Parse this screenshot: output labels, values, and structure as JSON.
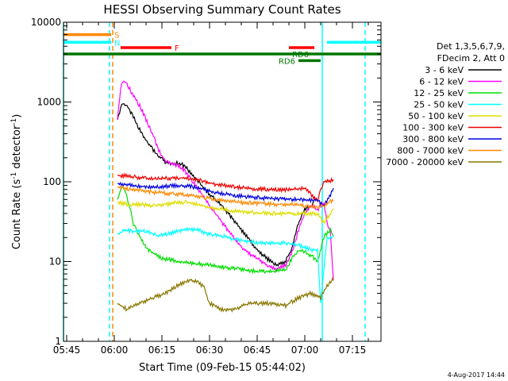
{
  "chart_data": {
    "type": "line",
    "title": "HESSI Observing Summary Count Rates",
    "xlabel": "Start Time (09-Feb-15 05:44:02)",
    "ylabel_prefix": "Count Rate (s",
    "ylabel_sup1": "-1",
    "ylabel_mid": " detector",
    "ylabel_sup2": "-1",
    "ylabel_suffix": ")",
    "y_scale": "log",
    "ylim": [
      1,
      10000
    ],
    "xlim": [
      "05:44",
      "07:24"
    ],
    "x_ticks": [
      "05:45",
      "06:00",
      "06:15",
      "06:30",
      "06:45",
      "07:00",
      "07:15"
    ],
    "y_ticks": [
      "1",
      "10",
      "100",
      "1000",
      "10000"
    ],
    "date_stamp": "4-Aug-2017 14:44",
    "legend": {
      "header1": "Det 1,3,5,6,7,9,",
      "header2": "FDecim 2, Att 0",
      "entries": [
        {
          "label": "3 - 6 keV",
          "color": "#000000"
        },
        {
          "label": "6 - 12 keV",
          "color": "#ff00ff"
        },
        {
          "label": "12 - 25 keV",
          "color": "#00dd00"
        },
        {
          "label": "25 - 50 keV",
          "color": "#00ffff"
        },
        {
          "label": "50 - 100 keV",
          "color": "#dddd00"
        },
        {
          "label": "100 - 300 keV",
          "color": "#ee0000"
        },
        {
          "label": "300 - 800 keV",
          "color": "#0000dd"
        },
        {
          "label": "800 - 7000 keV",
          "color": "#ff8800"
        },
        {
          "label": "7000 - 20000 keV",
          "color": "#887700"
        }
      ]
    },
    "flags": [
      {
        "label": "S",
        "color": "#ff8800",
        "level": 7000,
        "start": "05:44",
        "end": "05:59"
      },
      {
        "label": "N",
        "color": "#00ffff",
        "level": 5600,
        "start": "05:44",
        "end": "05:59"
      },
      {
        "label": "F",
        "color": "#ff0000",
        "level": 4800,
        "start": "06:02",
        "end": "06:18"
      },
      {
        "label": "",
        "color": "#ff0000",
        "level": 4800,
        "start": "06:55",
        "end": "07:03"
      },
      {
        "label": "RD6",
        "color": "#007700",
        "level": 3300,
        "start": "06:58",
        "end": "07:05"
      },
      {
        "label": "RD6",
        "color": "#007700",
        "level": 4000,
        "start": "05:44",
        "end": "07:24"
      },
      {
        "label": "",
        "color": "#00ffff",
        "level": 5600,
        "start": "07:07",
        "end": "07:24"
      }
    ],
    "vlines": [
      {
        "time": "05:44",
        "color": "#00ffff",
        "dashed": false
      },
      {
        "time": "05:58.5",
        "color": "#00ffff",
        "dashed": true
      },
      {
        "time": "05:59.5",
        "color": "#ff8800",
        "dashed": true
      },
      {
        "time": "07:05.5",
        "color": "#00ffff",
        "dashed": false
      },
      {
        "time": "07:19",
        "color": "#00ffff",
        "dashed": true
      }
    ],
    "series": [
      {
        "name": "3 - 6 keV",
        "color": "#000000",
        "points": [
          [
            "06:01",
            600
          ],
          [
            "06:02",
            850
          ],
          [
            "06:03",
            950
          ],
          [
            "06:04",
            900
          ],
          [
            "06:06",
            650
          ],
          [
            "06:08",
            450
          ],
          [
            "06:10",
            330
          ],
          [
            "06:12",
            260
          ],
          [
            "06:14",
            210
          ],
          [
            "06:16",
            180
          ],
          [
            "06:18",
            170
          ],
          [
            "06:20",
            170
          ],
          [
            "06:22",
            160
          ],
          [
            "06:24",
            130
          ],
          [
            "06:27",
            95
          ],
          [
            "06:30",
            70
          ],
          [
            "06:33",
            55
          ],
          [
            "06:36",
            40
          ],
          [
            "06:39",
            28
          ],
          [
            "06:42",
            20
          ],
          [
            "06:45",
            14
          ],
          [
            "06:48",
            11
          ],
          [
            "06:51",
            9
          ],
          [
            "06:54",
            10
          ],
          [
            "06:56",
            15
          ],
          [
            "06:58",
            30
          ],
          [
            "07:00",
            45
          ],
          [
            "07:02",
            50
          ],
          [
            "07:03",
            55
          ]
        ]
      },
      {
        "name": "6 - 12 keV",
        "color": "#ff00ff",
        "points": [
          [
            "06:01",
            600
          ],
          [
            "06:02",
            1500
          ],
          [
            "06:03",
            1900
          ],
          [
            "06:04",
            1700
          ],
          [
            "06:06",
            1200
          ],
          [
            "06:08",
            900
          ],
          [
            "06:10",
            600
          ],
          [
            "06:12",
            400
          ],
          [
            "06:14",
            250
          ],
          [
            "06:16",
            180
          ],
          [
            "06:18",
            170
          ],
          [
            "06:20",
            160
          ],
          [
            "06:22",
            140
          ],
          [
            "06:24",
            110
          ],
          [
            "06:27",
            75
          ],
          [
            "06:30",
            50
          ],
          [
            "06:33",
            35
          ],
          [
            "06:36",
            24
          ],
          [
            "06:39",
            17
          ],
          [
            "06:42",
            13
          ],
          [
            "06:45",
            11
          ],
          [
            "06:48",
            9
          ],
          [
            "06:51",
            8
          ],
          [
            "06:54",
            9
          ],
          [
            "06:56",
            13
          ],
          [
            "06:58",
            25
          ],
          [
            "07:00",
            40
          ],
          [
            "07:02",
            50
          ],
          [
            "07:04",
            45
          ],
          [
            "07:06",
            55
          ],
          [
            "07:07",
            30
          ],
          [
            "07:08",
            25
          ],
          [
            "07:09",
            6
          ]
        ]
      },
      {
        "name": "12 - 25 keV",
        "color": "#00dd00",
        "points": [
          [
            "06:01",
            60
          ],
          [
            "06:02",
            80
          ],
          [
            "06:03",
            85
          ],
          [
            "06:04",
            65
          ],
          [
            "06:05",
            45
          ],
          [
            "06:06",
            30
          ],
          [
            "06:07",
            25
          ],
          [
            "06:08",
            20
          ],
          [
            "06:10",
            15
          ],
          [
            "06:12",
            13
          ],
          [
            "06:15",
            11
          ],
          [
            "06:20",
            10
          ],
          [
            "06:25",
            9.5
          ],
          [
            "06:30",
            9
          ],
          [
            "06:35",
            8.5
          ],
          [
            "06:40",
            8
          ],
          [
            "06:45",
            7.5
          ],
          [
            "06:50",
            7.5
          ],
          [
            "06:54",
            8
          ],
          [
            "06:56",
            11
          ],
          [
            "06:58",
            14
          ],
          [
            "07:00",
            13
          ],
          [
            "07:02",
            12
          ],
          [
            "07:04",
            10
          ],
          [
            "07:06",
            20
          ],
          [
            "07:08",
            25
          ],
          [
            "07:09",
            22
          ]
        ]
      },
      {
        "name": "25 - 50 keV",
        "color": "#00ffff",
        "points": [
          [
            "06:01",
            22
          ],
          [
            "06:03",
            25
          ],
          [
            "06:06",
            24
          ],
          [
            "06:10",
            24
          ],
          [
            "06:14",
            21
          ],
          [
            "06:18",
            23
          ],
          [
            "06:22",
            25
          ],
          [
            "06:26",
            25
          ],
          [
            "06:30",
            22
          ],
          [
            "06:34",
            21
          ],
          [
            "06:38",
            19
          ],
          [
            "06:42",
            18
          ],
          [
            "06:46",
            17
          ],
          [
            "06:50",
            17
          ],
          [
            "06:54",
            17
          ],
          [
            "06:58",
            16
          ],
          [
            "07:02",
            14
          ],
          [
            "07:04",
            14
          ],
          [
            "07:05",
            3
          ],
          [
            "07:07",
            20
          ],
          [
            "07:09",
            20
          ]
        ]
      },
      {
        "name": "50 - 100 keV",
        "color": "#dddd00",
        "points": [
          [
            "06:01",
            55
          ],
          [
            "06:04",
            52
          ],
          [
            "06:08",
            52
          ],
          [
            "06:12",
            50
          ],
          [
            "06:16",
            52
          ],
          [
            "06:20",
            55
          ],
          [
            "06:24",
            55
          ],
          [
            "06:28",
            50
          ],
          [
            "06:32",
            46
          ],
          [
            "06:36",
            44
          ],
          [
            "06:40",
            42
          ],
          [
            "06:44",
            41
          ],
          [
            "06:48",
            40
          ],
          [
            "06:52",
            40
          ],
          [
            "06:56",
            40
          ],
          [
            "07:00",
            40
          ],
          [
            "07:04",
            40
          ],
          [
            "07:06",
            30
          ],
          [
            "07:09",
            46
          ]
        ]
      },
      {
        "name": "100 - 300 keV",
        "color": "#ee0000",
        "points": [
          [
            "06:01",
            120
          ],
          [
            "06:04",
            118
          ],
          [
            "06:08",
            112
          ],
          [
            "06:12",
            108
          ],
          [
            "06:16",
            110
          ],
          [
            "06:20",
            112
          ],
          [
            "06:24",
            110
          ],
          [
            "06:28",
            102
          ],
          [
            "06:32",
            93
          ],
          [
            "06:36",
            88
          ],
          [
            "06:40",
            84
          ],
          [
            "06:44",
            82
          ],
          [
            "06:48",
            80
          ],
          [
            "06:52",
            80
          ],
          [
            "06:56",
            80
          ],
          [
            "07:00",
            82
          ],
          [
            "07:04",
            58
          ],
          [
            "07:05",
            80
          ],
          [
            "07:06",
            100
          ],
          [
            "07:09",
            105
          ]
        ]
      },
      {
        "name": "300 - 800 keV",
        "color": "#0000dd",
        "points": [
          [
            "06:01",
            95
          ],
          [
            "06:04",
            92
          ],
          [
            "06:08",
            88
          ],
          [
            "06:12",
            86
          ],
          [
            "06:16",
            88
          ],
          [
            "06:20",
            90
          ],
          [
            "06:24",
            88
          ],
          [
            "06:28",
            80
          ],
          [
            "06:32",
            73
          ],
          [
            "06:36",
            69
          ],
          [
            "06:40",
            66
          ],
          [
            "06:44",
            64
          ],
          [
            "06:48",
            62
          ],
          [
            "06:52",
            61
          ],
          [
            "06:56",
            60
          ],
          [
            "07:00",
            60
          ],
          [
            "07:04",
            58
          ],
          [
            "07:06",
            50
          ],
          [
            "07:09",
            80
          ]
        ]
      },
      {
        "name": "800 - 7000 keV",
        "color": "#ff8800",
        "points": [
          [
            "06:01",
            85
          ],
          [
            "06:04",
            82
          ],
          [
            "06:08",
            78
          ],
          [
            "06:12",
            74
          ],
          [
            "06:16",
            72
          ],
          [
            "06:20",
            70
          ],
          [
            "06:24",
            68
          ],
          [
            "06:28",
            64
          ],
          [
            "06:32",
            60
          ],
          [
            "06:36",
            57
          ],
          [
            "06:40",
            55
          ],
          [
            "06:44",
            54
          ],
          [
            "06:48",
            53
          ],
          [
            "06:52",
            52
          ],
          [
            "06:56",
            52
          ],
          [
            "07:00",
            50
          ],
          [
            "07:04",
            48
          ],
          [
            "07:06",
            50
          ],
          [
            "07:09",
            60
          ]
        ]
      },
      {
        "name": "7000 - 20000 keV",
        "color": "#887700",
        "points": [
          [
            "06:01",
            3
          ],
          [
            "06:04",
            2.5
          ],
          [
            "06:08",
            3
          ],
          [
            "06:12",
            3.5
          ],
          [
            "06:16",
            4
          ],
          [
            "06:20",
            5
          ],
          [
            "06:24",
            6
          ],
          [
            "06:28",
            5
          ],
          [
            "06:30",
            3
          ],
          [
            "06:34",
            2.5
          ],
          [
            "06:38",
            2.5
          ],
          [
            "06:42",
            3
          ],
          [
            "06:46",
            3
          ],
          [
            "06:50",
            3
          ],
          [
            "06:54",
            2.8
          ],
          [
            "06:58",
            3.5
          ],
          [
            "07:02",
            4
          ],
          [
            "07:05",
            3.5
          ],
          [
            "07:07",
            5
          ],
          [
            "07:09",
            6
          ]
        ]
      }
    ]
  }
}
